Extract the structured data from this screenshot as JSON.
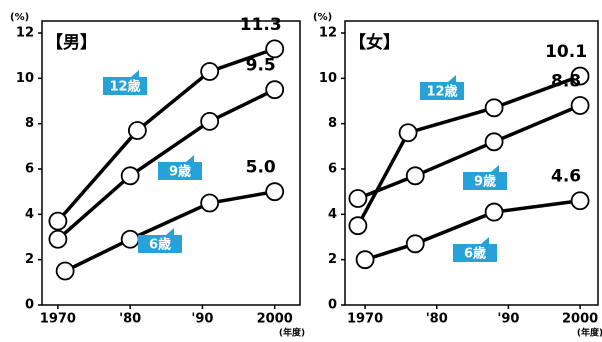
{
  "chart_data": [
    {
      "type": "line",
      "title": "【男】",
      "y_unit": "(%)",
      "x_unit": "(年度)",
      "xlim": [
        1967.8,
        2003.5
      ],
      "ylim": [
        0,
        12
      ],
      "xticks": [
        1970,
        {
          "value": 1980,
          "label": "'80"
        },
        {
          "value": 1990,
          "label": "'90"
        },
        2000
      ],
      "yticks": [
        0,
        2,
        4,
        6,
        8,
        10,
        12
      ],
      "series": [
        {
          "name": "12歳",
          "color": "#000000",
          "x": [
            1970,
            1981,
            1991,
            2000
          ],
          "values": [
            3.7,
            7.7,
            10.3,
            11.3
          ],
          "value_labels": [
            null,
            null,
            null,
            "11.3"
          ]
        },
        {
          "name": "9歳",
          "color": "#000000",
          "x": [
            1970,
            1980,
            1991,
            2000
          ],
          "values": [
            2.9,
            5.7,
            8.1,
            9.5
          ],
          "value_labels": [
            null,
            null,
            null,
            "9.5"
          ]
        },
        {
          "name": "6歳",
          "color": "#000000",
          "x": [
            1971,
            1980,
            1991,
            2000
          ],
          "values": [
            1.5,
            2.9,
            4.5,
            5.0
          ],
          "value_labels": [
            null,
            null,
            null,
            "5.0"
          ]
        }
      ]
    },
    {
      "type": "line",
      "title": "【女】",
      "y_unit": "(%)",
      "x_unit": "(年度)",
      "xlim": [
        1967.2,
        2002.5
      ],
      "ylim": [
        0,
        12
      ],
      "xticks": [
        1970,
        {
          "value": 1980,
          "label": "'80"
        },
        {
          "value": 1990,
          "label": "'90"
        },
        2000
      ],
      "yticks": [
        0,
        2,
        4,
        6,
        8,
        10,
        12
      ],
      "series": [
        {
          "name": "12歳",
          "color": "#000000",
          "x": [
            1969,
            1976,
            1988,
            2000
          ],
          "values": [
            3.5,
            7.6,
            8.7,
            10.1
          ],
          "value_labels": [
            null,
            null,
            null,
            "10.1"
          ]
        },
        {
          "name": "9歳",
          "color": "#000000",
          "x": [
            1969,
            1977,
            1988,
            2000
          ],
          "values": [
            4.7,
            5.7,
            7.2,
            8.8
          ],
          "value_labels": [
            null,
            null,
            null,
            "8.8"
          ]
        },
        {
          "name": "6歳",
          "color": "#000000",
          "x": [
            1970,
            1977,
            1988,
            2000
          ],
          "values": [
            2.0,
            2.7,
            4.1,
            4.6
          ],
          "value_labels": [
            null,
            null,
            null,
            "4.6"
          ]
        }
      ]
    }
  ]
}
